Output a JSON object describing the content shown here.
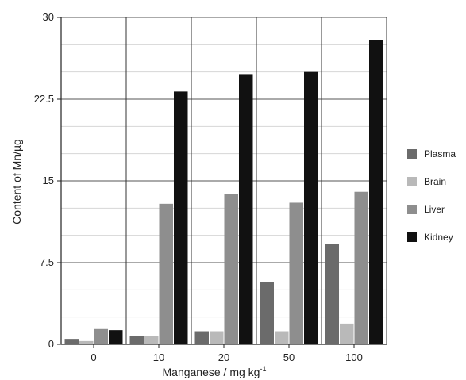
{
  "chart_data": {
    "type": "bar",
    "title": "",
    "xlabel": "Manganese / mg kg",
    "xlabel_superscript": "-1",
    "ylabel": "Content of Mn/µg",
    "ylim": [
      0,
      30
    ],
    "yticks": [
      "0",
      "7.5",
      "15",
      "22.5",
      "30"
    ],
    "categories": [
      "0",
      "10",
      "20",
      "50",
      "100"
    ],
    "grid": true,
    "legend_position": "right",
    "series": [
      {
        "name": "Plasma",
        "color": "#6b6b6b",
        "values": [
          0.5,
          0.8,
          1.2,
          5.7,
          9.2
        ]
      },
      {
        "name": "Brain",
        "color": "#b9b9b9",
        "values": [
          0.3,
          0.8,
          1.2,
          1.2,
          1.9
        ]
      },
      {
        "name": "Liver",
        "color": "#8e8e8e",
        "values": [
          1.4,
          12.9,
          13.8,
          13.0,
          14.0
        ]
      },
      {
        "name": "Kidney",
        "color": "#111111",
        "values": [
          1.3,
          23.2,
          24.8,
          25.0,
          27.9
        ]
      }
    ]
  }
}
